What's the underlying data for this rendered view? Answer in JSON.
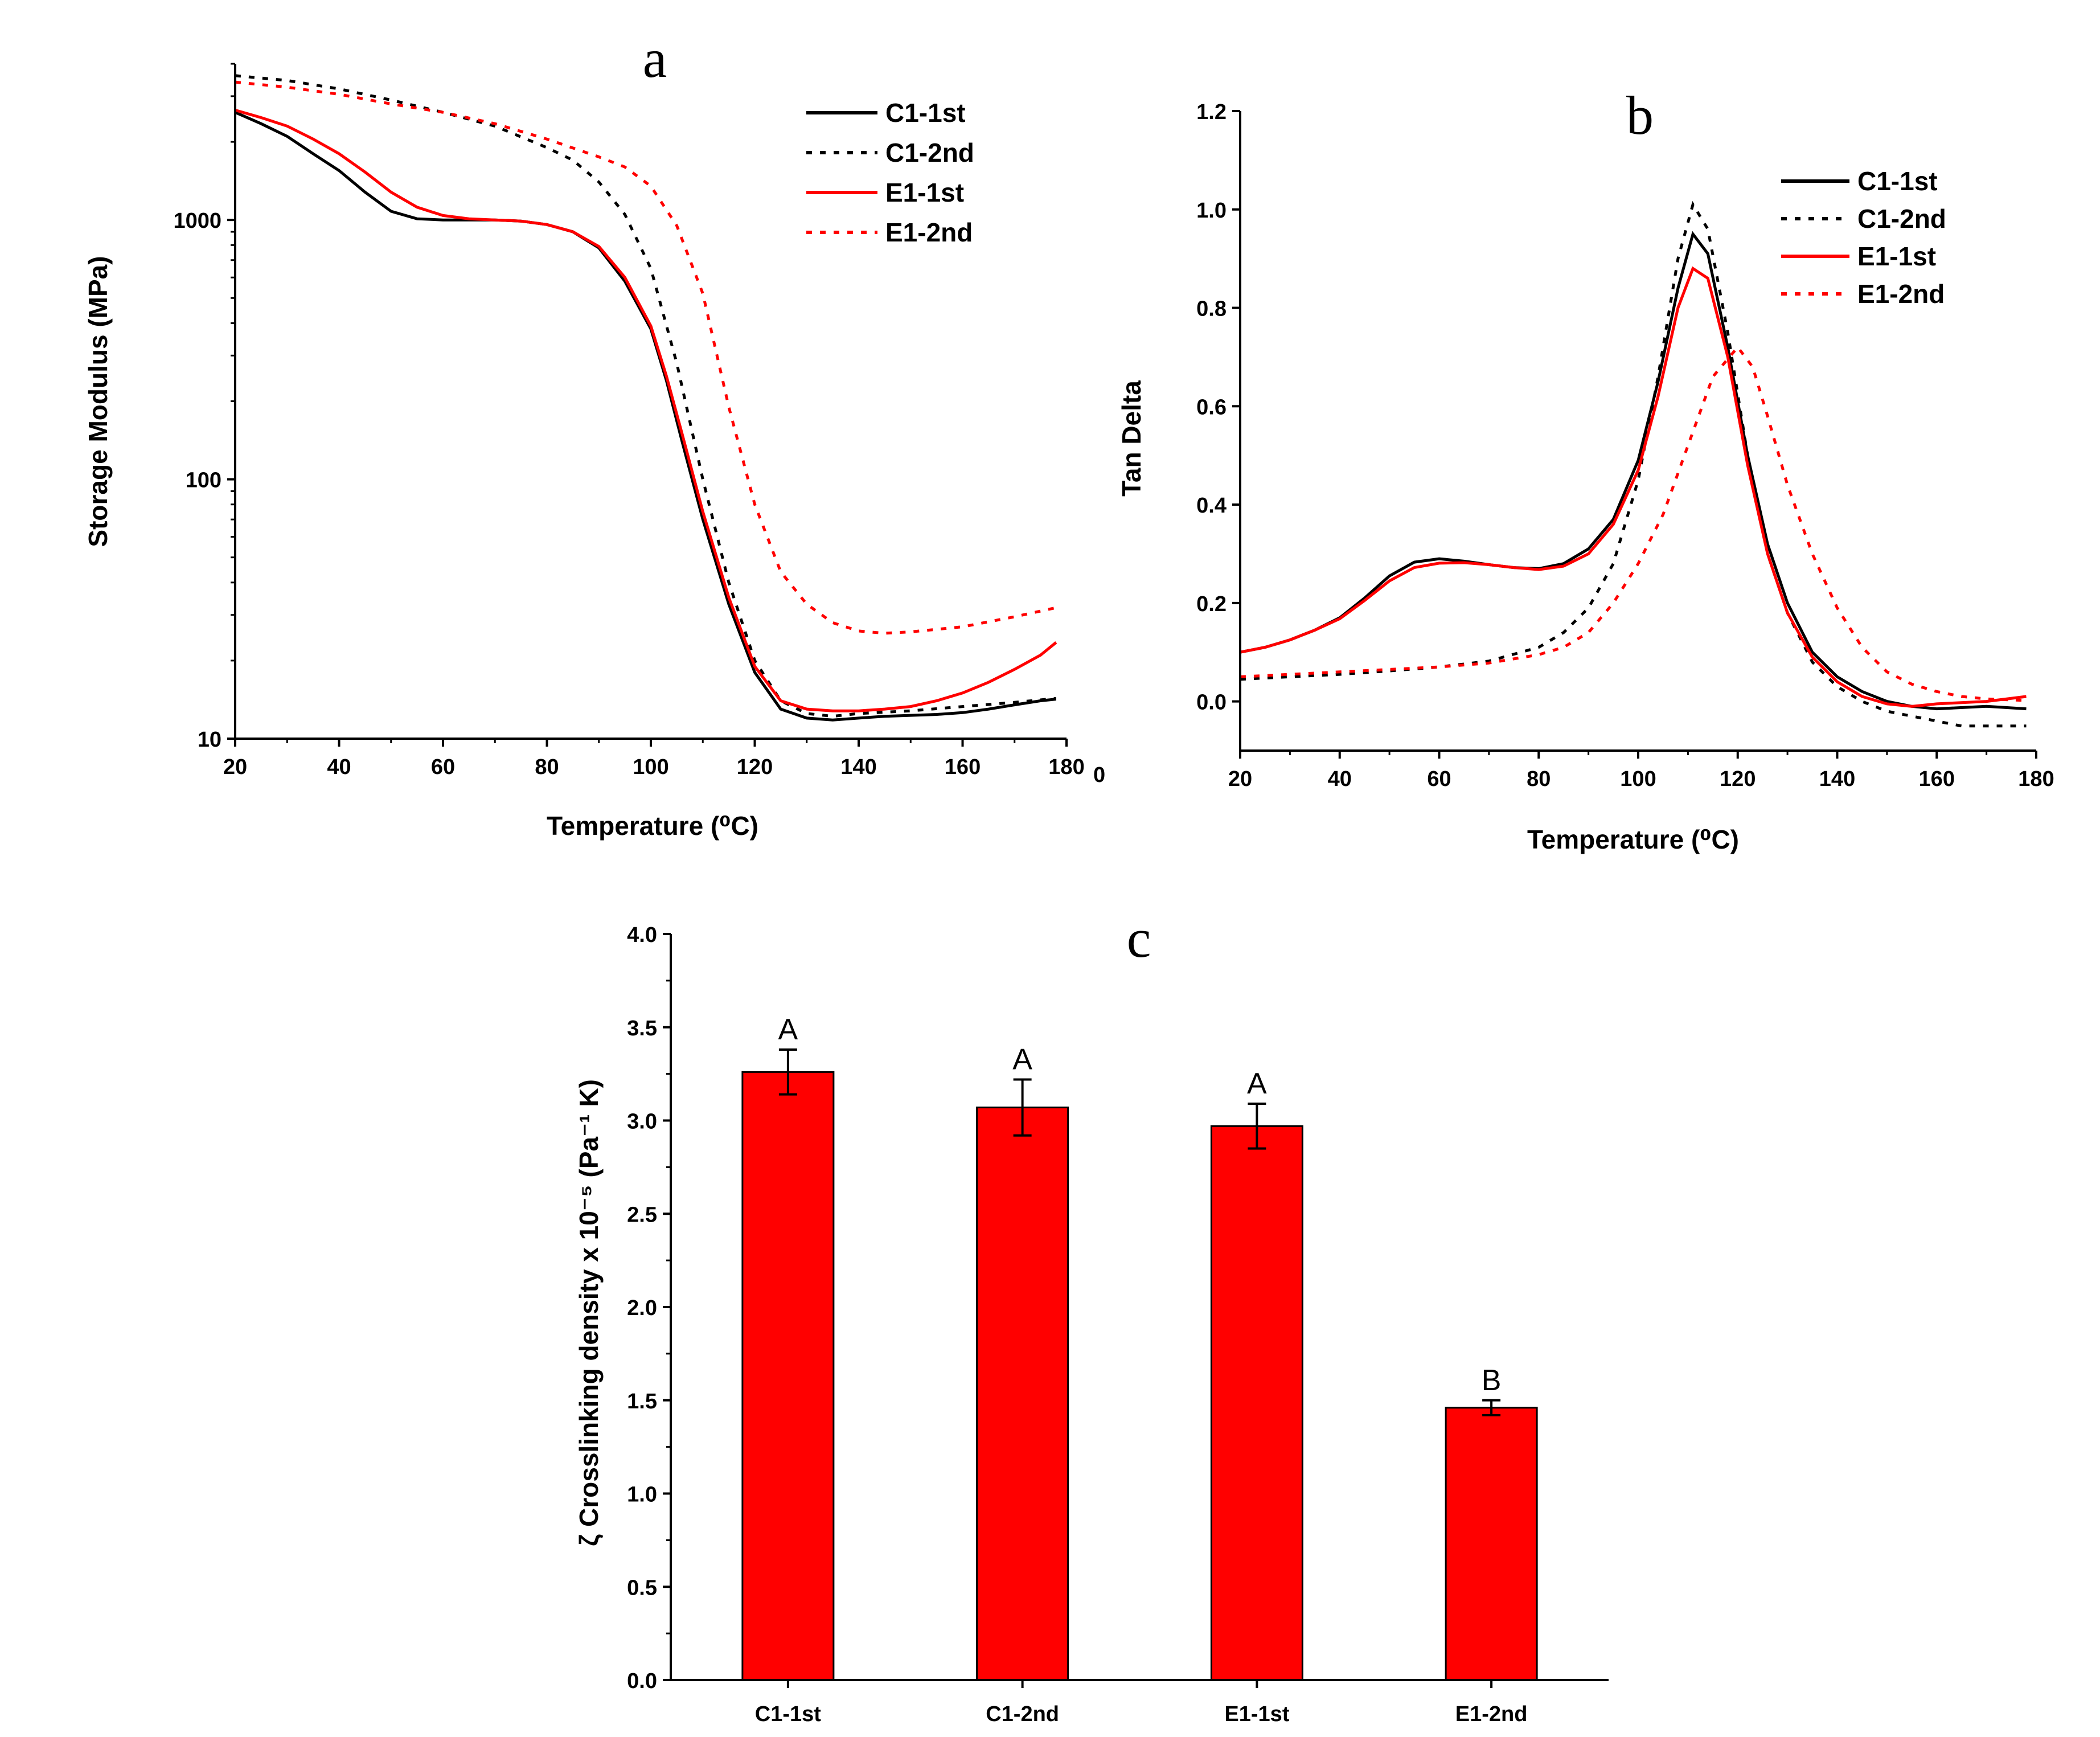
{
  "chart_data": [
    {
      "panel": "a",
      "type": "line",
      "xlabel": "Temperature (⁰C)",
      "ylabel": "Storage Modulus (MPa)",
      "xlim": [
        20,
        180
      ],
      "ylim": [
        10,
        4000
      ],
      "yscale": "log",
      "xticks": [
        "20",
        "40",
        "60",
        "80",
        "100",
        "120",
        "140",
        "160",
        "180"
      ],
      "yticks": [
        "10",
        "100",
        "1000"
      ],
      "stray_label": "0",
      "legend": [
        "C1-1st",
        "C1-2nd",
        "E1-1st",
        "E1-2nd"
      ],
      "series": [
        {
          "name": "C1-1st",
          "color": "#000000",
          "dash": "solid",
          "x": [
            20,
            25,
            30,
            35,
            40,
            45,
            50,
            55,
            60,
            65,
            70,
            75,
            80,
            85,
            90,
            95,
            100,
            103,
            106,
            110,
            115,
            120,
            125,
            130,
            135,
            140,
            145,
            150,
            155,
            160,
            165,
            170,
            175,
            178
          ],
          "y": [
            2600,
            2350,
            2100,
            1800,
            1550,
            1280,
            1080,
            1010,
            1000,
            1000,
            1000,
            990,
            960,
            900,
            780,
            580,
            380,
            240,
            140,
            70,
            33,
            18,
            13,
            12,
            11.8,
            12,
            12.2,
            12.3,
            12.4,
            12.6,
            13,
            13.5,
            14,
            14.2
          ]
        },
        {
          "name": "C1-2nd",
          "color": "#000000",
          "dash": "dotted",
          "x": [
            20,
            30,
            40,
            50,
            60,
            70,
            80,
            85,
            90,
            95,
            100,
            105,
            110,
            115,
            120,
            125,
            130,
            135,
            140,
            150,
            160,
            170,
            178
          ],
          "y": [
            3600,
            3450,
            3200,
            2900,
            2600,
            2300,
            1900,
            1700,
            1400,
            1050,
            650,
            280,
            100,
            40,
            20,
            14,
            12.5,
            12.2,
            12.5,
            12.8,
            13.3,
            13.8,
            14.3
          ]
        },
        {
          "name": "E1-1st",
          "color": "#ff0000",
          "dash": "solid",
          "x": [
            20,
            25,
            30,
            35,
            40,
            45,
            50,
            55,
            60,
            65,
            70,
            75,
            80,
            85,
            90,
            95,
            100,
            103,
            106,
            110,
            115,
            120,
            125,
            130,
            135,
            140,
            145,
            150,
            155,
            160,
            165,
            170,
            175,
            178
          ],
          "y": [
            2650,
            2480,
            2300,
            2050,
            1800,
            1530,
            1280,
            1120,
            1040,
            1010,
            1000,
            990,
            960,
            900,
            790,
            600,
            390,
            250,
            150,
            75,
            35,
            19,
            14,
            13,
            12.8,
            12.8,
            13,
            13.3,
            14,
            15,
            16.5,
            18.5,
            21,
            23.5
          ]
        },
        {
          "name": "E1-2nd",
          "color": "#ff0000",
          "dash": "dotted",
          "x": [
            20,
            30,
            40,
            50,
            60,
            70,
            80,
            90,
            95,
            100,
            105,
            110,
            115,
            120,
            125,
            130,
            135,
            140,
            145,
            150,
            160,
            170,
            178
          ],
          "y": [
            3400,
            3250,
            3050,
            2800,
            2600,
            2350,
            2050,
            1750,
            1600,
            1350,
            950,
            520,
            190,
            80,
            44,
            33,
            28,
            26,
            25.5,
            25.8,
            27,
            29.5,
            32
          ]
        }
      ]
    },
    {
      "panel": "b",
      "type": "line",
      "xlabel": "Temperature (⁰C)",
      "ylabel": "Tan Delta",
      "xlim": [
        20,
        180
      ],
      "ylim": [
        -0.1,
        1.2
      ],
      "xticks": [
        "20",
        "40",
        "60",
        "80",
        "100",
        "120",
        "140",
        "160",
        "180"
      ],
      "yticks": [
        "0.0",
        "0.2",
        "0.4",
        "0.6",
        "0.8",
        "1.0",
        "1.2"
      ],
      "legend": [
        "C1-1st",
        "C1-2nd",
        "E1-1st",
        "E1-2nd"
      ],
      "series": [
        {
          "name": "C1-1st",
          "color": "#000000",
          "dash": "solid",
          "x": [
            20,
            25,
            30,
            35,
            40,
            45,
            50,
            55,
            60,
            65,
            70,
            75,
            80,
            85,
            90,
            95,
            100,
            104,
            108,
            111,
            114,
            118,
            122,
            126,
            130,
            135,
            140,
            145,
            150,
            155,
            160,
            170,
            178
          ],
          "y": [
            0.1,
            0.11,
            0.125,
            0.145,
            0.17,
            0.21,
            0.255,
            0.283,
            0.29,
            0.285,
            0.278,
            0.272,
            0.27,
            0.28,
            0.31,
            0.37,
            0.49,
            0.65,
            0.84,
            0.95,
            0.91,
            0.72,
            0.5,
            0.32,
            0.2,
            0.1,
            0.05,
            0.02,
            0.0,
            -0.01,
            -0.015,
            -0.01,
            -0.015
          ]
        },
        {
          "name": "C1-2nd",
          "color": "#000000",
          "dash": "dotted",
          "x": [
            20,
            30,
            40,
            50,
            60,
            70,
            80,
            85,
            90,
            95,
            100,
            104,
            108,
            111,
            114,
            118,
            122,
            126,
            130,
            135,
            140,
            145,
            150,
            155,
            160,
            165,
            170,
            175,
            178
          ],
          "y": [
            0.045,
            0.05,
            0.055,
            0.062,
            0.07,
            0.082,
            0.11,
            0.14,
            0.19,
            0.28,
            0.45,
            0.66,
            0.9,
            1.01,
            0.96,
            0.75,
            0.5,
            0.3,
            0.18,
            0.08,
            0.03,
            0.0,
            -0.02,
            -0.03,
            -0.04,
            -0.05,
            -0.05,
            -0.05,
            -0.05
          ]
        },
        {
          "name": "E1-1st",
          "color": "#ff0000",
          "dash": "solid",
          "x": [
            20,
            25,
            30,
            35,
            40,
            45,
            50,
            55,
            60,
            65,
            70,
            75,
            80,
            85,
            90,
            95,
            100,
            104,
            108,
            111,
            114,
            118,
            122,
            126,
            130,
            135,
            140,
            145,
            150,
            155,
            160,
            170,
            178
          ],
          "y": [
            0.1,
            0.11,
            0.125,
            0.145,
            0.168,
            0.205,
            0.245,
            0.272,
            0.281,
            0.282,
            0.278,
            0.272,
            0.268,
            0.275,
            0.3,
            0.36,
            0.47,
            0.62,
            0.8,
            0.88,
            0.86,
            0.7,
            0.48,
            0.3,
            0.18,
            0.09,
            0.04,
            0.01,
            -0.005,
            -0.01,
            -0.005,
            0.0,
            0.01
          ]
        },
        {
          "name": "E1-2nd",
          "color": "#ff0000",
          "dash": "dotted",
          "x": [
            20,
            30,
            40,
            50,
            60,
            70,
            80,
            85,
            90,
            95,
            100,
            105,
            110,
            115,
            120,
            123,
            126,
            130,
            135,
            140,
            145,
            150,
            155,
            160,
            165,
            170,
            175,
            178
          ],
          "y": [
            0.05,
            0.055,
            0.06,
            0.065,
            0.07,
            0.078,
            0.095,
            0.11,
            0.14,
            0.2,
            0.28,
            0.38,
            0.52,
            0.66,
            0.72,
            0.68,
            0.58,
            0.44,
            0.3,
            0.19,
            0.11,
            0.06,
            0.035,
            0.02,
            0.01,
            0.005,
            0.003,
            0.002
          ]
        }
      ]
    },
    {
      "panel": "c",
      "type": "bar",
      "ylabel": "ζ Crosslinking density x 10⁻⁵ (Pa⁻¹ K)",
      "ylim": [
        0,
        4.0
      ],
      "yticks": [
        "0.0",
        "0.5",
        "1.0",
        "1.5",
        "2.0",
        "2.5",
        "3.0",
        "3.5",
        "4.0"
      ],
      "categories": [
        "C1-1st",
        "C1-2nd",
        "E1-1st",
        "E1-2nd"
      ],
      "values": [
        3.26,
        3.07,
        2.97,
        1.46
      ],
      "errors": [
        0.12,
        0.15,
        0.12,
        0.04
      ],
      "group_labels": [
        "A",
        "A",
        "A",
        "B"
      ],
      "color": "#ff0000"
    }
  ],
  "panel_letters": {
    "a": "a",
    "b": "b",
    "c": "c"
  }
}
